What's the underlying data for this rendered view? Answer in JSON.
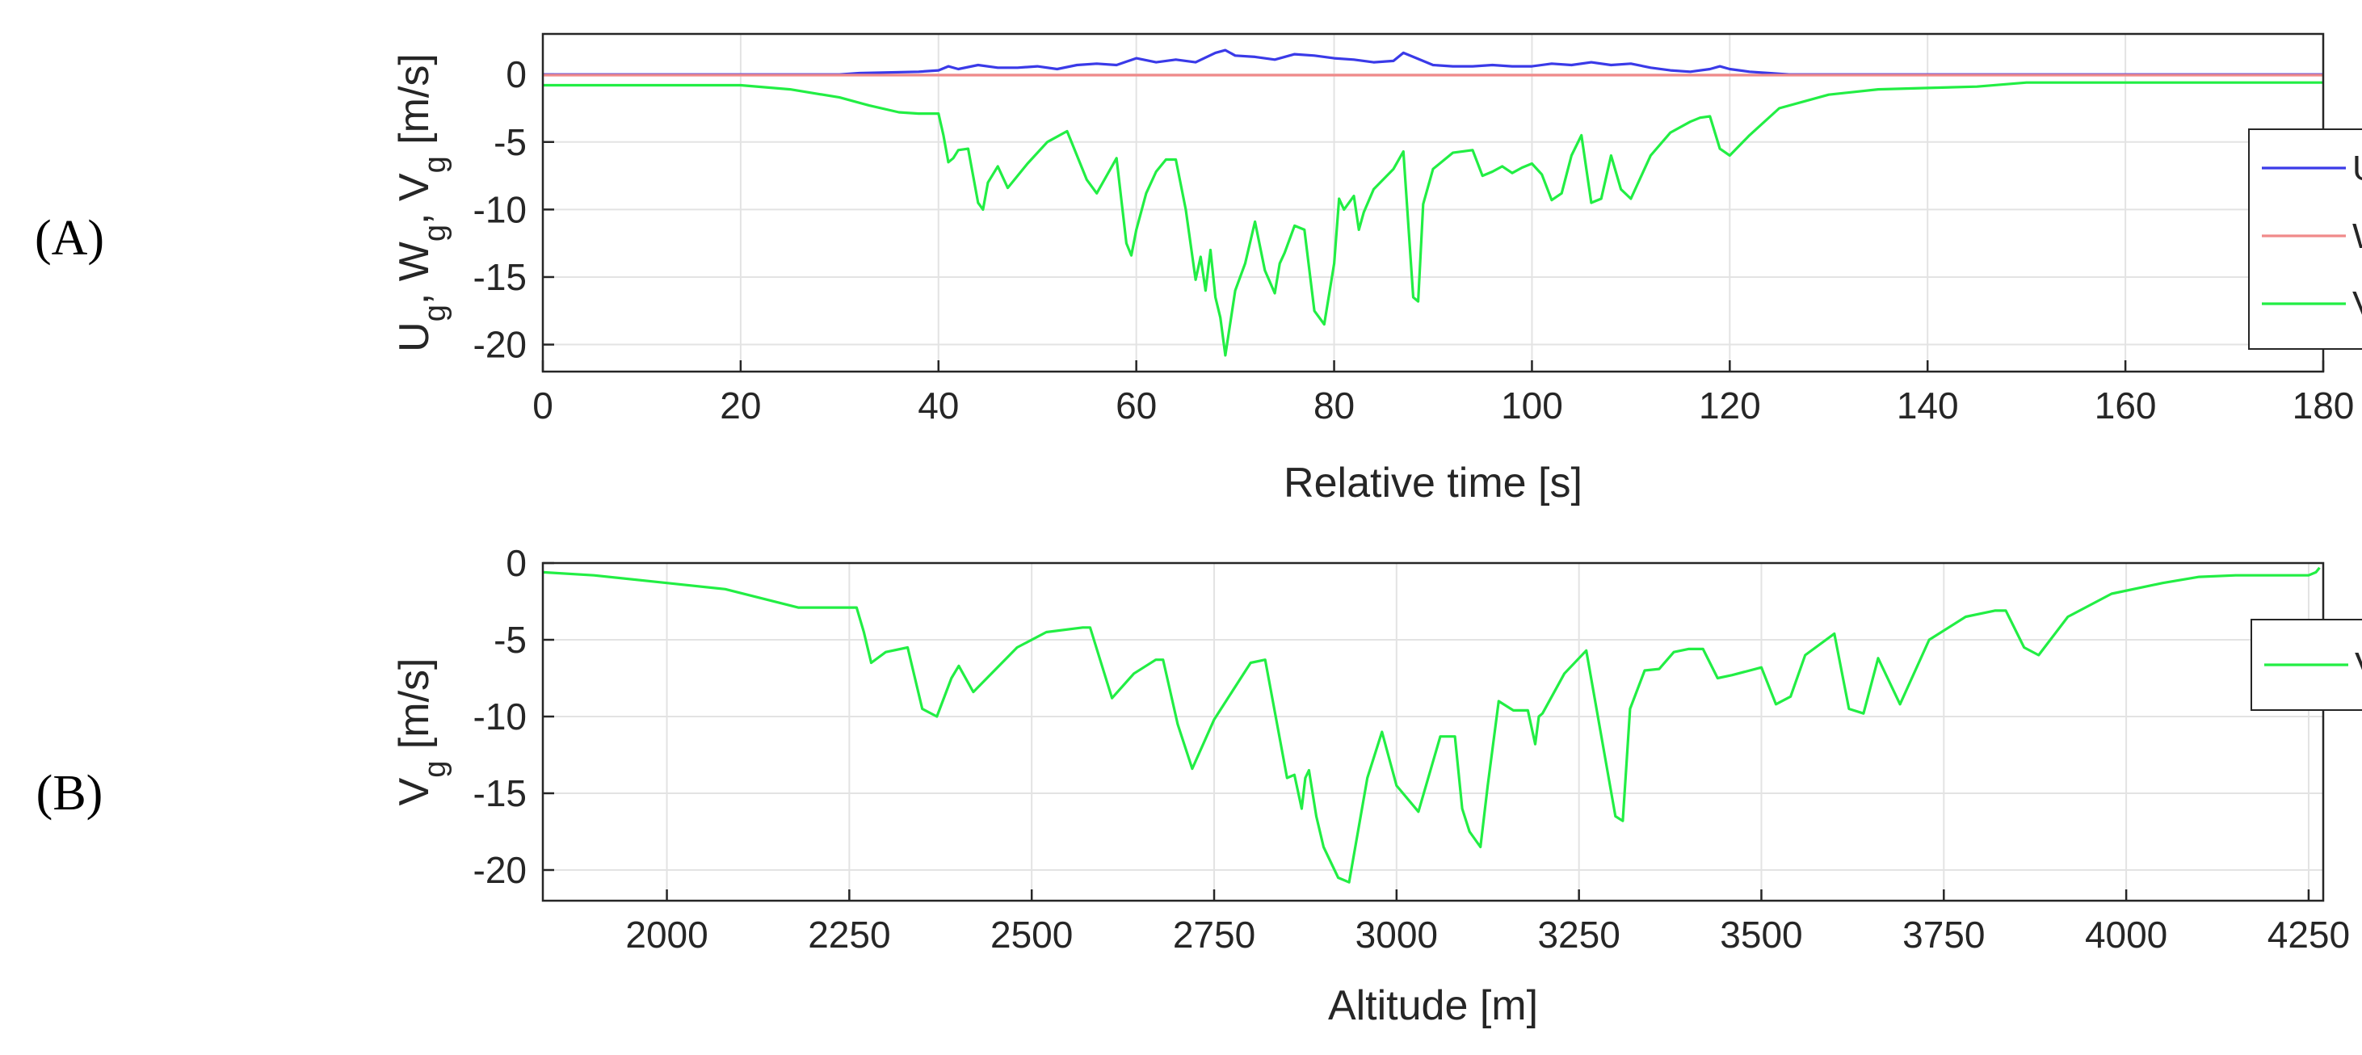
{
  "chart_data": [
    {
      "type": "line",
      "panel_label": "(A)",
      "title": "",
      "xlabel": "Relative time [s]",
      "ylabel_parts": [
        {
          "t": "U"
        },
        {
          "t": "g",
          "sub": true
        },
        {
          "t": ", W"
        },
        {
          "t": "g",
          "sub": true
        },
        {
          "t": ", V"
        },
        {
          "t": "g",
          "sub": true
        },
        {
          "t": " [m/s]"
        }
      ],
      "xlim": [
        0,
        180
      ],
      "ylim": [
        -22,
        3
      ],
      "xticks": [
        0,
        20,
        40,
        60,
        80,
        100,
        120,
        140,
        160,
        180
      ],
      "yticks": [
        0,
        -5,
        -10,
        -15,
        -20
      ],
      "xtick_labels": [
        "0",
        "20",
        "40",
        "60",
        "80",
        "100",
        "120",
        "140",
        "160",
        "180"
      ],
      "ytick_labels": [
        "0",
        "-5",
        "-10",
        "-15",
        "-20"
      ],
      "grid": true,
      "legend_position": "right",
      "series": [
        {
          "name": "U",
          "sub": "g",
          "color": "#3a3ae8",
          "x": [
            0,
            30,
            32,
            38,
            40,
            41,
            42,
            44,
            46,
            48,
            50,
            52,
            54,
            56,
            58,
            60,
            62,
            64,
            66,
            68,
            69,
            70,
            72,
            74,
            76,
            78,
            80,
            82,
            84,
            86,
            87,
            88,
            90,
            92,
            94,
            96,
            98,
            100,
            102,
            104,
            106,
            108,
            110,
            112,
            114,
            116,
            118,
            119,
            120,
            122,
            124,
            126,
            180
          ],
          "y": [
            0,
            0,
            0.1,
            0.2,
            0.3,
            0.6,
            0.4,
            0.7,
            0.5,
            0.5,
            0.6,
            0.4,
            0.7,
            0.8,
            0.7,
            1.2,
            0.9,
            1.1,
            0.9,
            1.6,
            1.8,
            1.4,
            1.3,
            1.1,
            1.5,
            1.4,
            1.2,
            1.1,
            0.9,
            1.0,
            1.6,
            1.3,
            0.7,
            0.6,
            0.6,
            0.7,
            0.6,
            0.6,
            0.8,
            0.7,
            0.9,
            0.7,
            0.8,
            0.5,
            0.3,
            0.2,
            0.4,
            0.6,
            0.4,
            0.2,
            0.1,
            0,
            0
          ]
        },
        {
          "name": "W",
          "sub": "g",
          "color": "#f08a8a",
          "x": [
            0,
            180
          ],
          "y": [
            -0.05,
            -0.05
          ]
        },
        {
          "name": "V",
          "sub": "g",
          "color": "#22ee44",
          "x": [
            0,
            20,
            25,
            30,
            33,
            36,
            38,
            40,
            40.5,
            41,
            41.5,
            42,
            43,
            44,
            44.5,
            45,
            46,
            47,
            49,
            51,
            53,
            55,
            56,
            57,
            58,
            59,
            59.5,
            60,
            61,
            62,
            63,
            64,
            65,
            66,
            66.5,
            67,
            67.5,
            68,
            68.5,
            69,
            70,
            71,
            72,
            73,
            74,
            74.5,
            75,
            76,
            77,
            78,
            79,
            80,
            80.5,
            81,
            82,
            82.5,
            83,
            84,
            86,
            87,
            88,
            88.5,
            89,
            90,
            92,
            94,
            95,
            96,
            97,
            98,
            99,
            100,
            101,
            102,
            103,
            104,
            105,
            106,
            107,
            108,
            109,
            110,
            112,
            114,
            116,
            117,
            118,
            119,
            120,
            122,
            125,
            130,
            135,
            140,
            145,
            150,
            155,
            160,
            180
          ],
          "y": [
            -0.8,
            -0.8,
            -1.1,
            -1.7,
            -2.3,
            -2.8,
            -2.9,
            -2.9,
            -4.5,
            -6.5,
            -6.2,
            -5.6,
            -5.5,
            -9.5,
            -10.0,
            -8.0,
            -6.8,
            -8.4,
            -6.6,
            -5.0,
            -4.2,
            -7.8,
            -8.8,
            -7.5,
            -6.2,
            -12.5,
            -13.4,
            -11.5,
            -8.8,
            -7.2,
            -6.3,
            -6.3,
            -10.0,
            -15.2,
            -13.5,
            -16.0,
            -13.0,
            -16.5,
            -18.0,
            -20.8,
            -16.0,
            -14.0,
            -10.9,
            -14.5,
            -16.2,
            -14.0,
            -13.2,
            -11.2,
            -11.5,
            -17.5,
            -18.5,
            -14.0,
            -9.2,
            -10.0,
            -9.0,
            -11.5,
            -10.2,
            -8.5,
            -7.0,
            -5.7,
            -16.5,
            -16.8,
            -9.6,
            -7.0,
            -5.8,
            -5.6,
            -7.5,
            -7.2,
            -6.8,
            -7.3,
            -6.9,
            -6.6,
            -7.4,
            -9.3,
            -8.8,
            -6.0,
            -4.5,
            -9.5,
            -9.2,
            -6.0,
            -8.5,
            -9.2,
            -6.0,
            -4.3,
            -3.5,
            -3.2,
            -3.1,
            -5.5,
            -6.0,
            -4.5,
            -2.5,
            -1.5,
            -1.1,
            -1.0,
            -0.9,
            -0.6,
            -0.6,
            -0.6,
            -0.6
          ]
        }
      ]
    },
    {
      "type": "line",
      "panel_label": "(B)",
      "title": "",
      "xlabel": "Altitude [m]",
      "ylabel_parts": [
        {
          "t": "V"
        },
        {
          "t": "g",
          "sub": true
        },
        {
          "t": " [m/s]"
        }
      ],
      "xlim": [
        1830,
        4270
      ],
      "ylim": [
        -22,
        0
      ],
      "xticks": [
        2000,
        2250,
        2500,
        2750,
        3000,
        3250,
        3500,
        3750,
        4000,
        4250
      ],
      "yticks": [
        0,
        -5,
        -10,
        -15,
        -20
      ],
      "xtick_labels": [
        "2000",
        "2250",
        "2500",
        "2750",
        "3000",
        "3250",
        "3500",
        "3750",
        "4000",
        "4250"
      ],
      "ytick_labels": [
        "0",
        "-5",
        "-10",
        "-15",
        "-20"
      ],
      "grid": true,
      "legend_position": "top-right",
      "series": [
        {
          "name": "V",
          "sub": "g",
          "color": "#22ee44",
          "x": [
            1830,
            1900,
            2000,
            2080,
            2180,
            2260,
            2270,
            2280,
            2300,
            2330,
            2350,
            2370,
            2390,
            2400,
            2420,
            2480,
            2520,
            2570,
            2580,
            2610,
            2640,
            2670,
            2680,
            2700,
            2720,
            2750,
            2800,
            2820,
            2850,
            2860,
            2870,
            2875,
            2880,
            2890,
            2900,
            2920,
            2935,
            2960,
            2980,
            3000,
            3030,
            3060,
            3080,
            3090,
            3100,
            3115,
            3125,
            3140,
            3160,
            3180,
            3190,
            3195,
            3200,
            3230,
            3260,
            3300,
            3310,
            3320,
            3340,
            3360,
            3380,
            3400,
            3420,
            3440,
            3460,
            3500,
            3520,
            3540,
            3560,
            3600,
            3620,
            3640,
            3660,
            3690,
            3730,
            3780,
            3820,
            3835,
            3860,
            3880,
            3920,
            3980,
            4050,
            4100,
            4150,
            4200,
            4250,
            4260,
            4265
          ],
          "y": [
            -0.6,
            -0.8,
            -1.3,
            -1.7,
            -2.9,
            -2.9,
            -4.5,
            -6.5,
            -5.8,
            -5.5,
            -9.5,
            -10.0,
            -7.5,
            -6.7,
            -8.4,
            -5.5,
            -4.5,
            -4.2,
            -4.2,
            -8.8,
            -7.2,
            -6.3,
            -6.3,
            -10.5,
            -13.4,
            -10.2,
            -6.5,
            -6.3,
            -14.0,
            -13.8,
            -16.0,
            -14.0,
            -13.5,
            -16.5,
            -18.5,
            -20.5,
            -20.8,
            -14.0,
            -11.0,
            -14.5,
            -16.2,
            -11.3,
            -11.3,
            -16.0,
            -17.5,
            -18.5,
            -14.5,
            -9.0,
            -9.6,
            -9.6,
            -11.8,
            -10.0,
            -9.8,
            -7.2,
            -5.7,
            -16.5,
            -16.8,
            -9.5,
            -7.0,
            -6.9,
            -5.8,
            -5.6,
            -5.6,
            -7.5,
            -7.3,
            -6.8,
            -9.2,
            -8.7,
            -6.0,
            -4.6,
            -9.5,
            -9.8,
            -6.2,
            -9.2,
            -5.0,
            -3.5,
            -3.1,
            -3.1,
            -5.5,
            -6.0,
            -3.5,
            -2.0,
            -1.3,
            -0.9,
            -0.8,
            -0.8,
            -0.8,
            -0.6,
            -0.3
          ]
        }
      ]
    }
  ]
}
